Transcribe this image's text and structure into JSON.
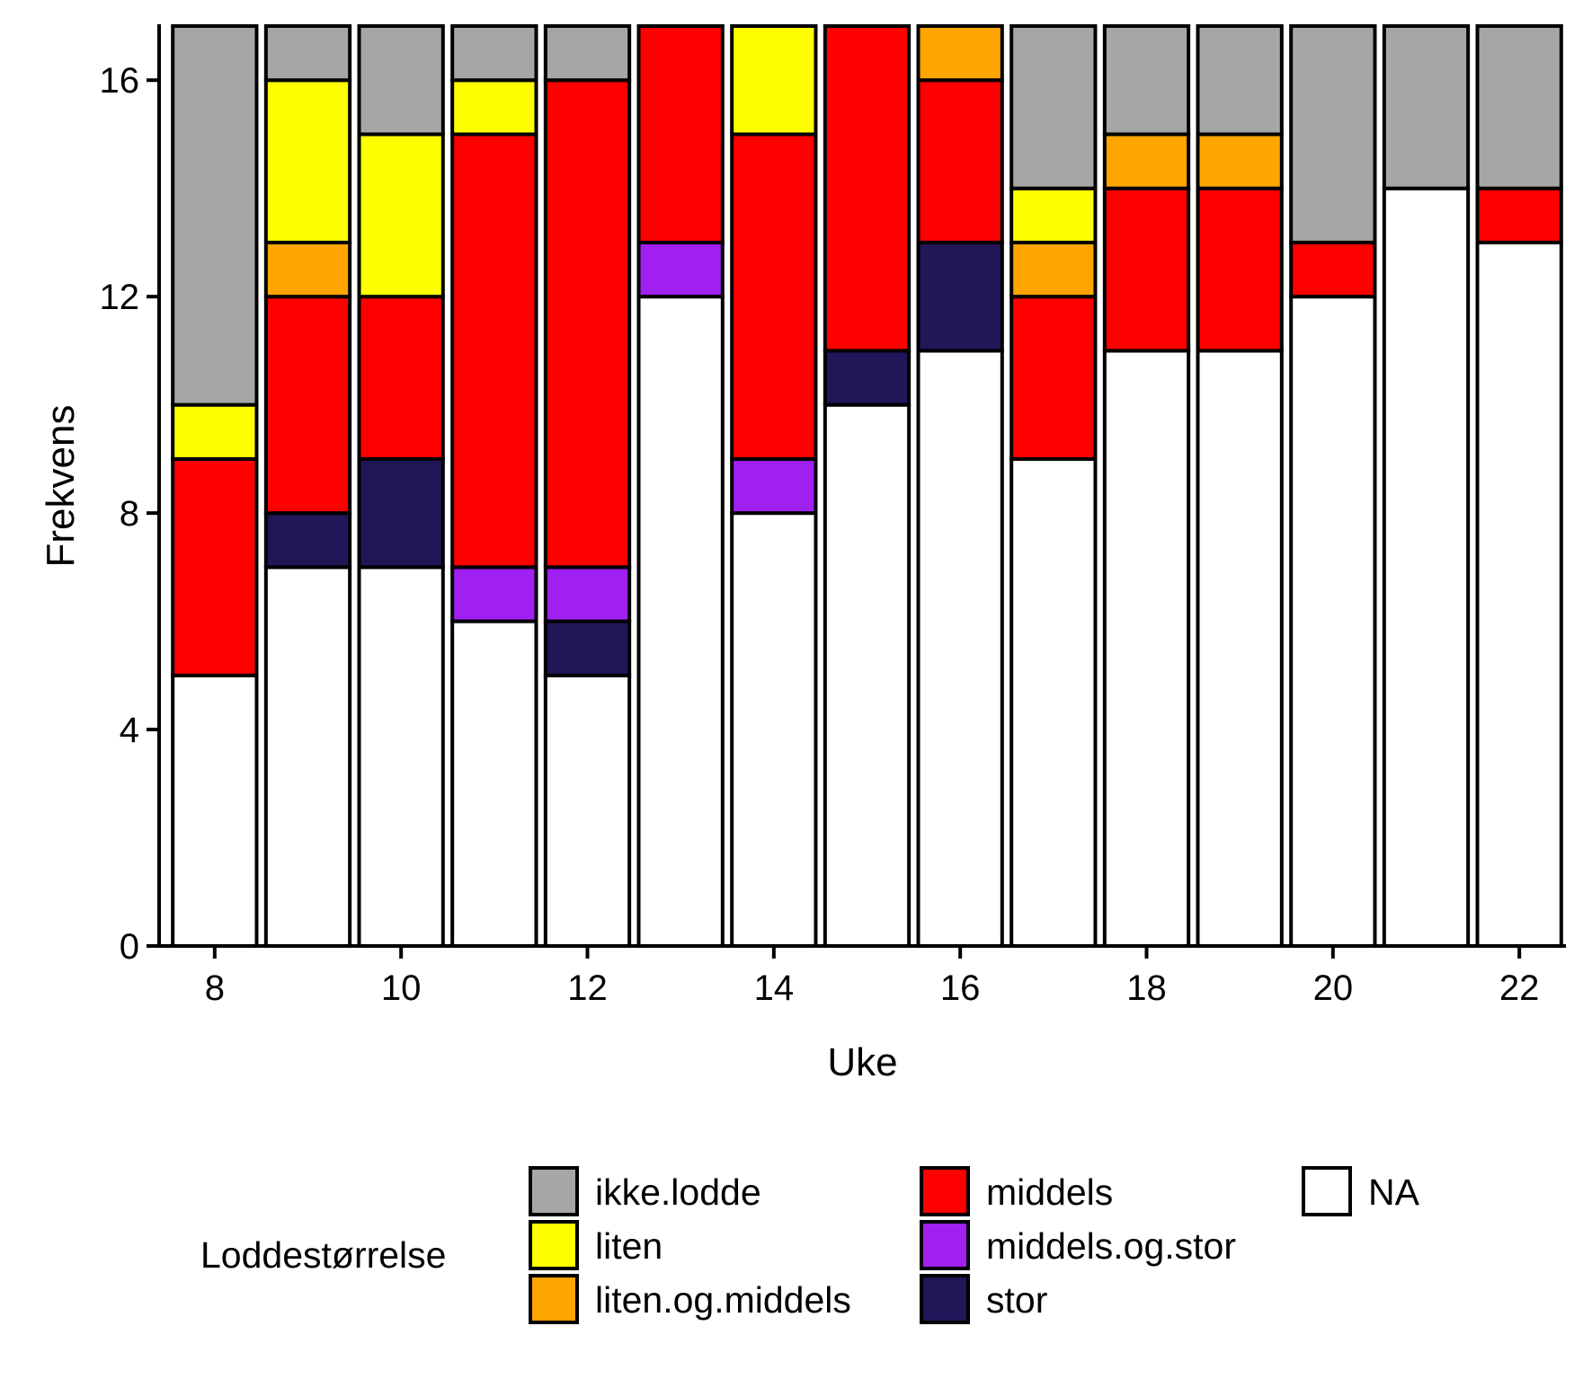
{
  "chart_data": {
    "type": "bar",
    "stacked": true,
    "title": "",
    "xlabel": "Uke",
    "ylabel": "Frekvens",
    "x": [
      8,
      9,
      10,
      11,
      12,
      13,
      14,
      15,
      16,
      17,
      18,
      19,
      20,
      21,
      22
    ],
    "xticks": [
      8,
      10,
      12,
      14,
      16,
      18,
      20,
      22
    ],
    "yticks": [
      0,
      4,
      8,
      12,
      16
    ],
    "ylim": [
      0,
      17
    ],
    "xlim": [
      7.5,
      22.5
    ],
    "grid": false,
    "legend": {
      "title": "Loddestørrelse",
      "placement": "bottom"
    },
    "series": [
      {
        "name": "NA",
        "color": "#FFFFFF",
        "values": [
          5,
          7,
          7,
          6,
          5,
          12,
          8,
          10,
          11,
          9,
          11,
          11,
          12,
          14,
          13
        ]
      },
      {
        "name": "stor",
        "color": "#201658",
        "values": [
          0,
          1,
          2,
          0,
          1,
          0,
          0,
          1,
          2,
          0,
          0,
          0,
          0,
          0,
          0
        ]
      },
      {
        "name": "middels.og.stor",
        "color": "#A020F0",
        "values": [
          0,
          0,
          0,
          1,
          1,
          1,
          1,
          0,
          0,
          0,
          0,
          0,
          0,
          0,
          0
        ]
      },
      {
        "name": "middels",
        "color": "#FF0000",
        "values": [
          4,
          4,
          3,
          8,
          9,
          4,
          6,
          6,
          3,
          3,
          3,
          3,
          1,
          0,
          1
        ]
      },
      {
        "name": "liten.og.middels",
        "color": "#FFA500",
        "values": [
          0,
          1,
          0,
          0,
          0,
          0,
          0,
          0,
          1,
          1,
          1,
          1,
          0,
          0,
          0
        ]
      },
      {
        "name": "liten",
        "color": "#FFFF00",
        "values": [
          1,
          3,
          3,
          1,
          0,
          0,
          2,
          0,
          0,
          1,
          0,
          0,
          0,
          0,
          0
        ]
      },
      {
        "name": "ikke.lodde",
        "color": "#A6A6A6",
        "values": [
          7,
          1,
          2,
          1,
          1,
          0,
          0,
          0,
          0,
          3,
          2,
          2,
          4,
          3,
          3
        ]
      }
    ],
    "legend_order": [
      "ikke.lodde",
      "liten",
      "liten.og.middels",
      "middels",
      "middels.og.stor",
      "stor",
      "NA"
    ]
  }
}
